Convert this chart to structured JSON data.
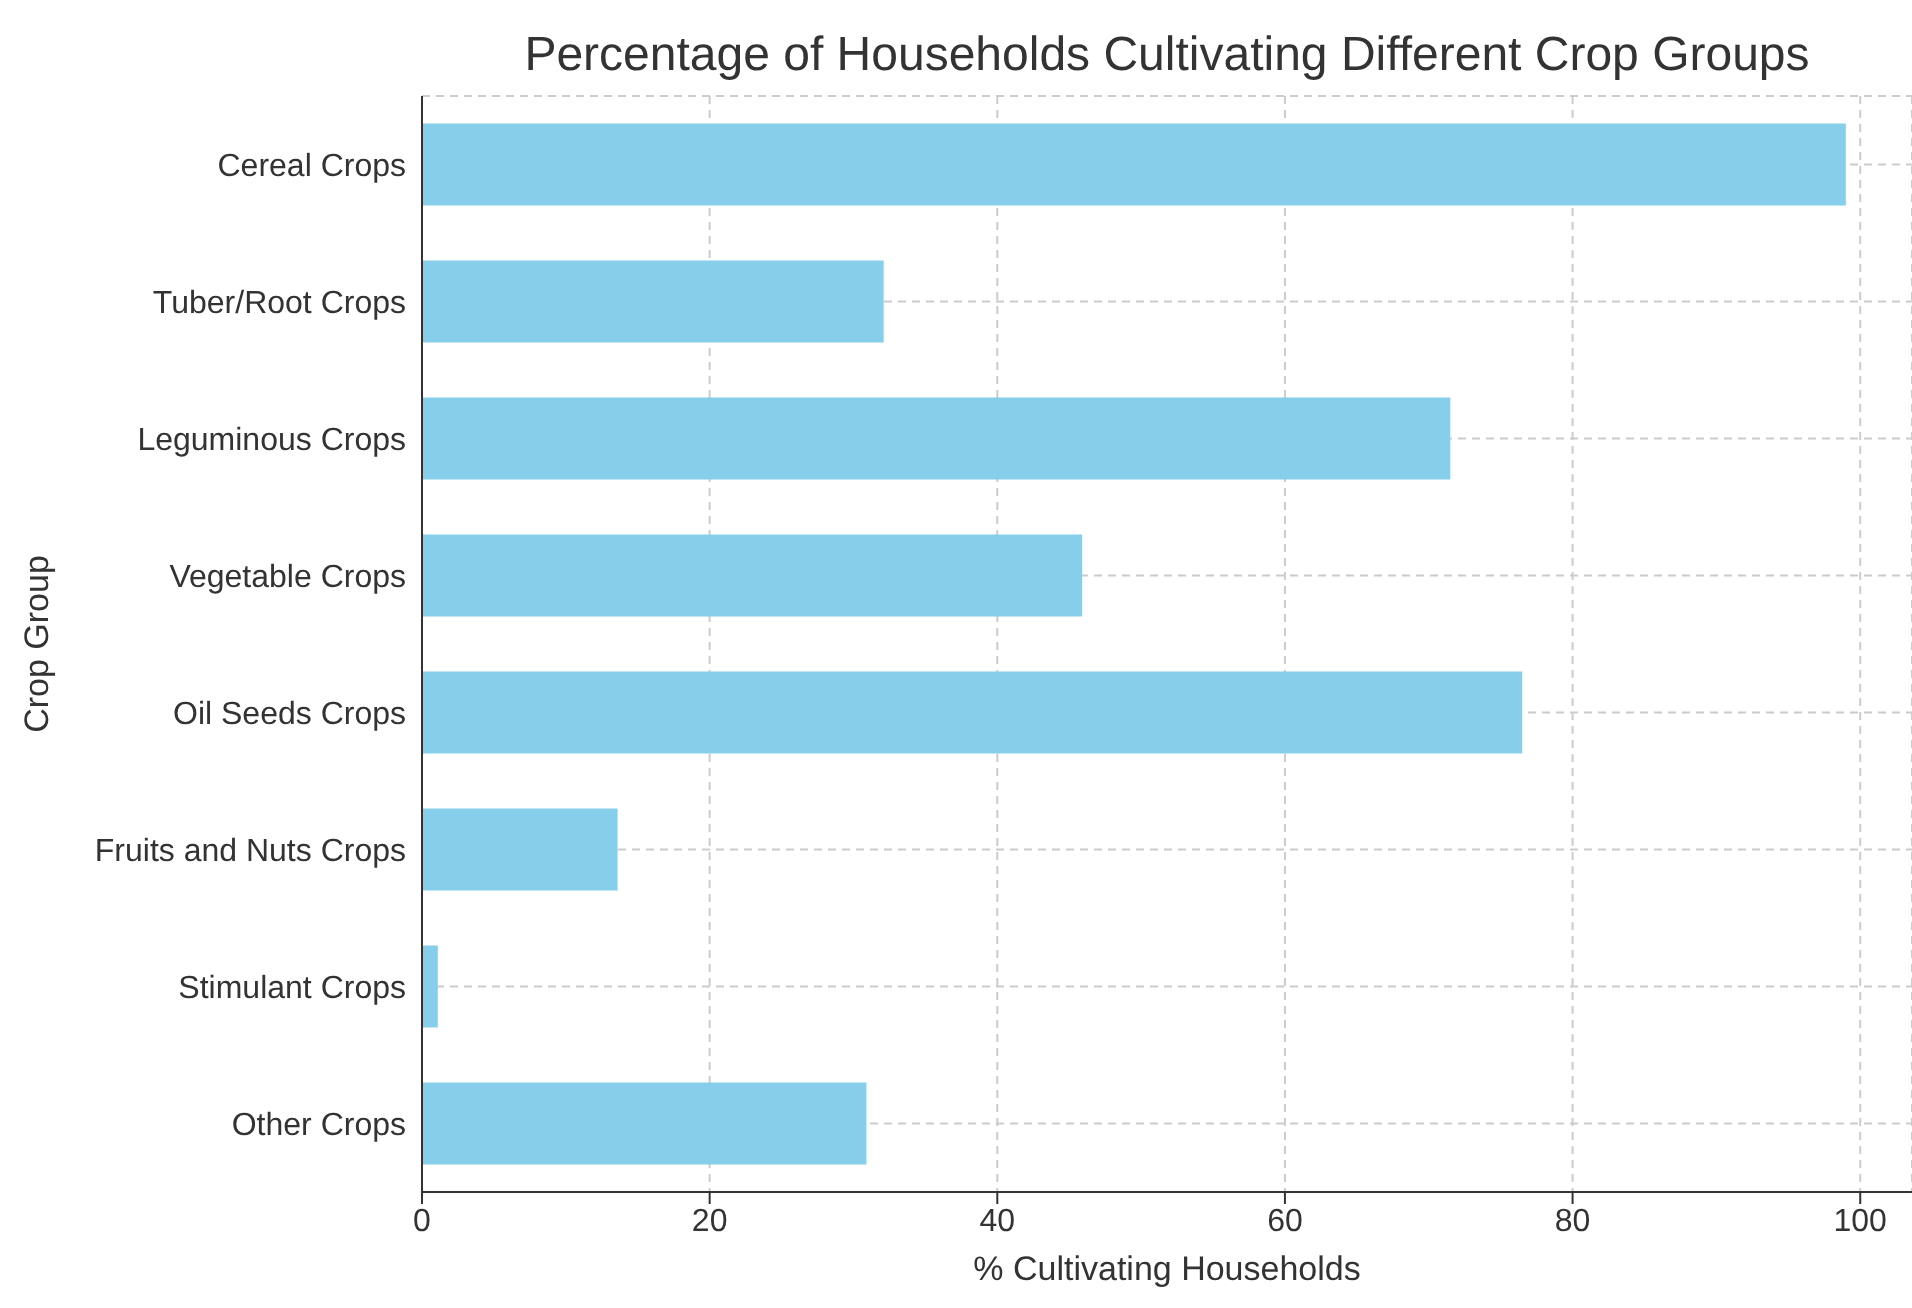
{
  "chart_data": {
    "type": "bar",
    "orientation": "horizontal",
    "title": "Percentage of Households Cultivating Different Crop Groups",
    "xlabel": "% Cultivating Households",
    "ylabel": "Crop Group",
    "categories": [
      "Cereal Crops",
      "Tuber/Root Crops",
      "Leguminous Crops",
      "Vegetable Crops",
      "Oil Seeds Crops",
      "Fruits and Nuts Crops",
      "Stimulant Crops",
      "Other Crops"
    ],
    "values": [
      99.0,
      32.1,
      71.5,
      45.9,
      76.5,
      13.6,
      1.1,
      30.9
    ],
    "color": "#87ceeb",
    "xlim": [
      0,
      103.6
    ],
    "xticks": [
      0,
      20,
      40,
      60,
      80,
      100
    ],
    "grid": true
  }
}
